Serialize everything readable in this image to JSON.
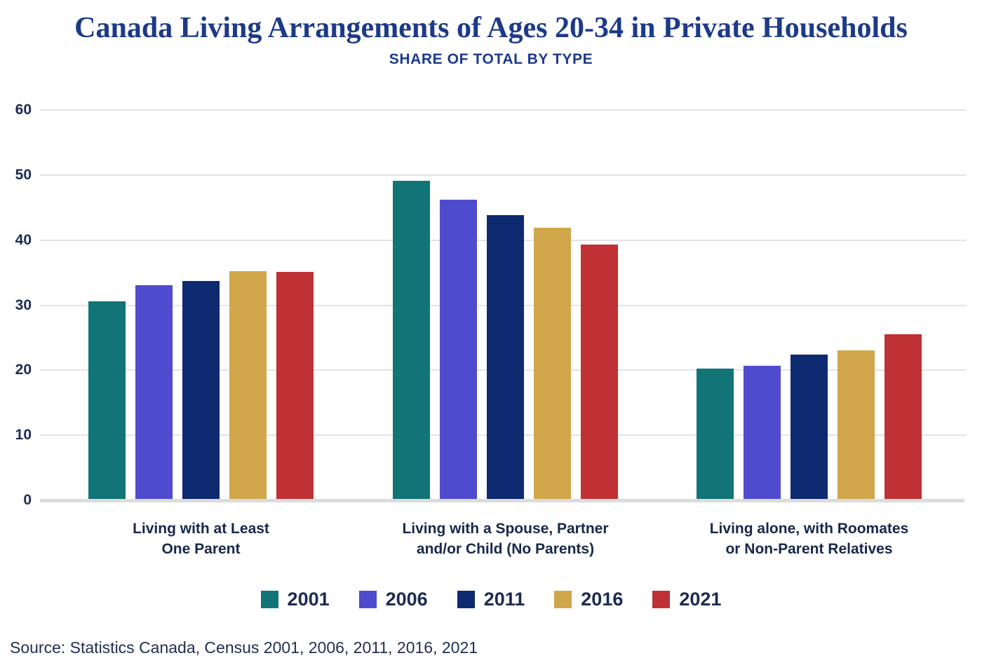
{
  "title": "Canada Living Arrangements of Ages 20-34 in Private Households",
  "subtitle": "SHARE OF TOTAL BY TYPE",
  "source": "Source: Statistics Canada, Census 2001, 2006, 2011, 2016, 2021",
  "colors": {
    "title_blue": "#1c3a88",
    "text_navy": "#1b2b52",
    "gridline": "#e3e3e3",
    "baseline": "#dcdcdc"
  },
  "chart_data": {
    "type": "bar",
    "title": "Canada Living Arrangements of Ages 20-34 in Private Households",
    "subtitle": "SHARE OF TOTAL BY TYPE",
    "categories": [
      "Living with at Least\nOne Parent",
      "Living with a Spouse, Partner\nand/or Child (No Parents)",
      "Living alone, with Roomates\nor Non-Parent Relatives"
    ],
    "series": [
      {
        "name": "2001",
        "color": "#117578",
        "values": [
          30.6,
          49.1,
          20.2
        ]
      },
      {
        "name": "2006",
        "color": "#4f4bce",
        "values": [
          33.1,
          46.2,
          20.7
        ]
      },
      {
        "name": "2011",
        "color": "#0e2a70",
        "values": [
          33.7,
          43.8,
          22.4
        ]
      },
      {
        "name": "2016",
        "color": "#d1a64b",
        "values": [
          35.2,
          41.9,
          23.0
        ]
      },
      {
        "name": "2021",
        "color": "#bf3134",
        "values": [
          35.1,
          39.3,
          25.5
        ]
      }
    ],
    "y_ticks": [
      0,
      10,
      20,
      30,
      40,
      50,
      60
    ],
    "ylim": [
      0,
      60
    ],
    "ylabel": "",
    "xlabel": "",
    "grid": true,
    "legend_position": "bottom",
    "source": "Source: Statistics Canada, Census 2001, 2006, 2011, 2016, 2021"
  }
}
